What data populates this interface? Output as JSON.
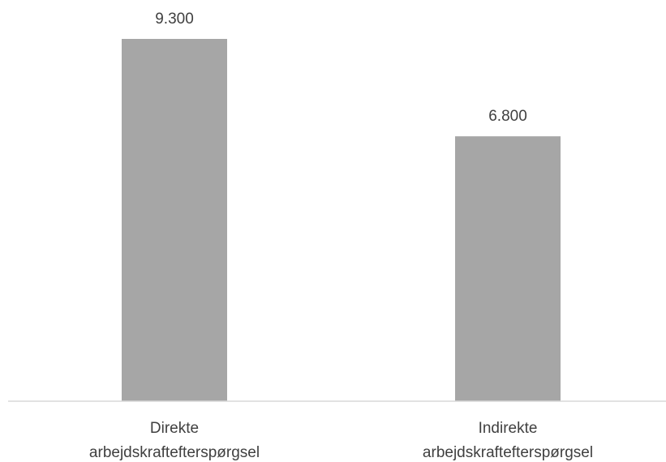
{
  "chart_data": {
    "type": "bar",
    "categories": [
      [
        "Direkte",
        "arbejdskraftefterspørgsel"
      ],
      [
        "Indirekte",
        "arbejdskraftefterspørgsel"
      ]
    ],
    "values": [
      9300,
      6800
    ],
    "value_labels": [
      "9.300",
      "6.800"
    ],
    "title": "",
    "xlabel": "",
    "ylabel": "",
    "ylim": [
      0,
      10000
    ],
    "grid": false,
    "legend": "none",
    "bar_color": "#a6a6a6",
    "axis_color": "#d9d9d9",
    "label_color": "#404040"
  }
}
